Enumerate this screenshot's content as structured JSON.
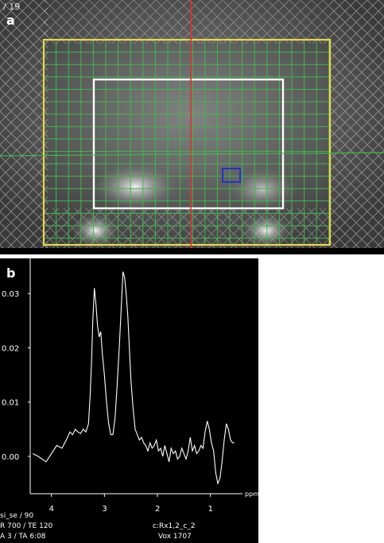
{
  "panel_a": {
    "label": "a",
    "slice_text": "/ 19"
  },
  "panel_b": {
    "label": "b",
    "footer": {
      "left": [
        "si_se / 90",
        "R 700 / TE 120",
        "A 3 / TA 6:08"
      ],
      "right": [
        "c:Rx1,2_c_2",
        "Vox 1707"
      ]
    }
  },
  "colors": {
    "fov_box": "#e8d84a",
    "voxel_grid": "#3fb84a",
    "press_box": "#ffffff",
    "slice_line": "#e03030",
    "selected_voxel": "#2233cc",
    "spectrum": "#ffffff"
  },
  "chart_data": {
    "type": "line",
    "x_unit": "ppm",
    "x_reversed": true,
    "xlim": [
      4.4,
      0.5
    ],
    "ylim": [
      -0.006,
      0.035
    ],
    "xticks": [
      4,
      3,
      2,
      1
    ],
    "yticks": [
      0.0,
      0.01,
      0.02,
      0.03
    ],
    "ytick_labels": [
      "0.00",
      "0.01",
      "0.02",
      "0.03"
    ],
    "x": [
      4.35,
      4.25,
      4.1,
      4.0,
      3.9,
      3.8,
      3.72,
      3.65,
      3.6,
      3.55,
      3.5,
      3.45,
      3.4,
      3.35,
      3.3,
      3.27,
      3.24,
      3.22,
      3.19,
      3.16,
      3.13,
      3.1,
      3.07,
      3.04,
      3.0,
      2.96,
      2.92,
      2.88,
      2.84,
      2.8,
      2.76,
      2.72,
      2.68,
      2.65,
      2.62,
      2.59,
      2.56,
      2.53,
      2.5,
      2.46,
      2.42,
      2.38,
      2.34,
      2.3,
      2.26,
      2.22,
      2.18,
      2.14,
      2.1,
      2.06,
      2.02,
      1.98,
      1.94,
      1.9,
      1.86,
      1.82,
      1.78,
      1.74,
      1.7,
      1.66,
      1.62,
      1.58,
      1.54,
      1.5,
      1.46,
      1.42,
      1.38,
      1.34,
      1.3,
      1.26,
      1.22,
      1.18,
      1.14,
      1.1,
      1.06,
      1.02,
      0.98,
      0.94,
      0.9,
      0.86,
      0.82,
      0.78,
      0.74,
      0.7,
      0.66,
      0.62,
      0.58,
      0.55
    ],
    "y": [
      0.0005,
      0.0,
      -0.001,
      0.0005,
      0.002,
      0.0015,
      0.003,
      0.0045,
      0.004,
      0.005,
      0.0045,
      0.0042,
      0.005,
      0.0045,
      0.006,
      0.011,
      0.018,
      0.025,
      0.031,
      0.028,
      0.024,
      0.022,
      0.023,
      0.019,
      0.015,
      0.01,
      0.006,
      0.004,
      0.004,
      0.007,
      0.013,
      0.02,
      0.028,
      0.034,
      0.033,
      0.03,
      0.026,
      0.02,
      0.014,
      0.009,
      0.005,
      0.004,
      0.003,
      0.0035,
      0.0025,
      0.002,
      0.001,
      0.0025,
      0.0015,
      0.002,
      0.003,
      0.001,
      0.0015,
      0.0,
      0.002,
      0.0005,
      -0.001,
      0.0015,
      0.0005,
      0.001,
      -0.0005,
      0.0,
      0.0015,
      0.0005,
      -0.0005,
      0.001,
      0.0035,
      0.001,
      0.002,
      0.0005,
      0.001,
      0.002,
      0.0015,
      0.0045,
      0.0065,
      0.005,
      0.0025,
      0.001,
      -0.003,
      -0.005,
      -0.004,
      -0.001,
      0.003,
      0.006,
      0.005,
      0.003,
      0.0025,
      0.0025
    ]
  }
}
